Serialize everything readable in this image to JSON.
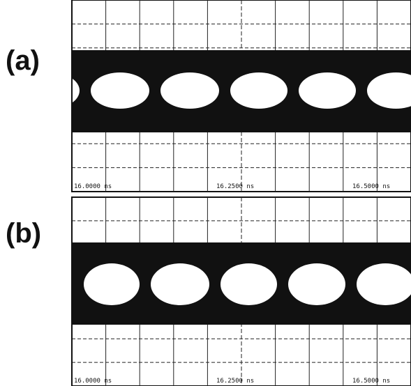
{
  "panels": [
    {
      "label": "(a)",
      "time_labels": [
        "16.0000 ns",
        "16.2500 ns",
        "16.5000 ns"
      ]
    },
    {
      "label": "(b)",
      "time_labels": [
        "16.0000 ns",
        "16.2500 ns",
        "16.5000 ns"
      ]
    }
  ]
}
